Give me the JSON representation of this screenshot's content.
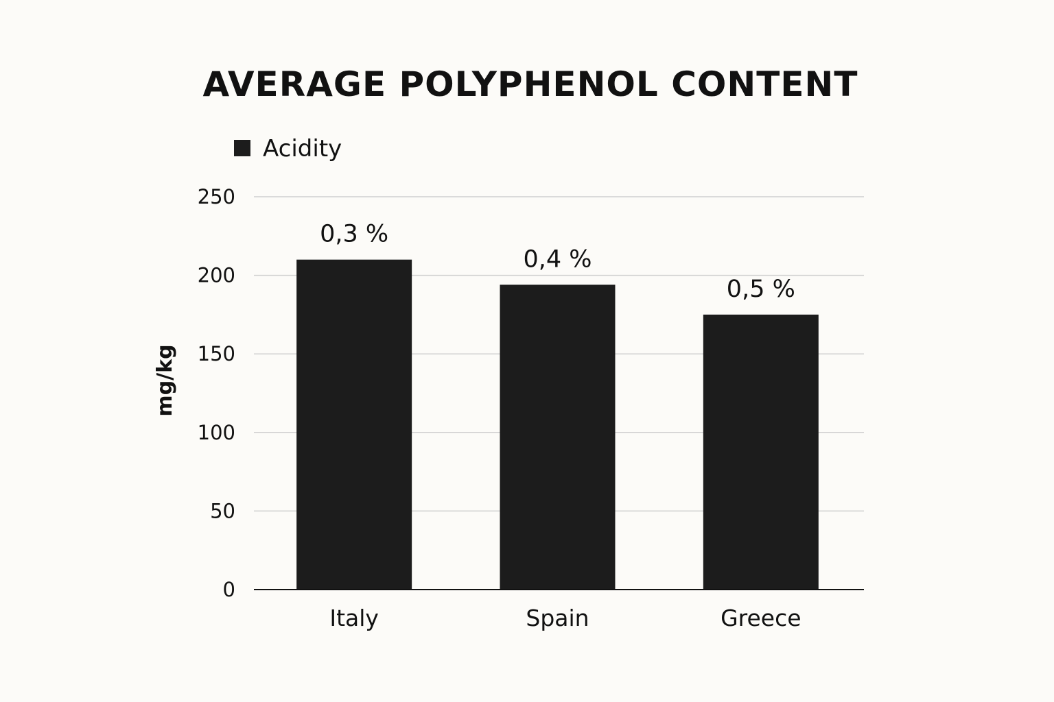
{
  "chart_data": {
    "type": "bar",
    "title": "AVERAGE POLYPHENOL CONTENT",
    "xlabel": "",
    "ylabel": "mg/kg",
    "ylim": [
      0,
      250
    ],
    "yticks": [
      0,
      50,
      100,
      150,
      200,
      250
    ],
    "grid": true,
    "legend": {
      "placement": "top-left",
      "entries": [
        {
          "label": "Acidity",
          "color": "#1c1c1c"
        }
      ]
    },
    "categories": [
      "Italy",
      "Spain",
      "Greece"
    ],
    "series": [
      {
        "name": "Acidity",
        "color": "#1c1c1c",
        "values": [
          210,
          194,
          175
        ],
        "data_labels": [
          "0,3 %",
          "0,4 %",
          "0,5 %"
        ]
      }
    ]
  },
  "colors": {
    "background": "#fcfbf8",
    "bar": "#1c1c1c",
    "grid": "#cfcfcf",
    "axis": "#111111"
  }
}
